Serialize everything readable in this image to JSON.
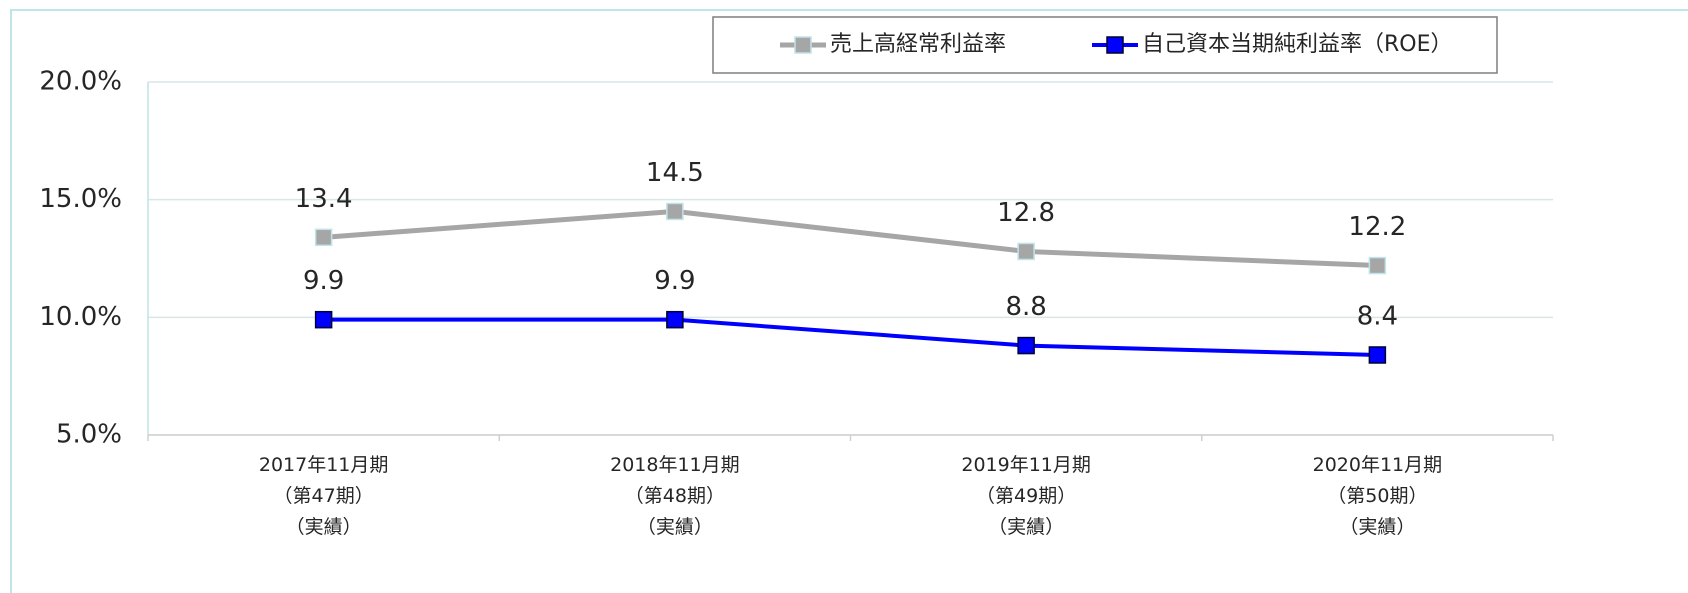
{
  "chart_data": {
    "type": "line",
    "categories": [
      "2017年11月期\n（第47期）\n（実績）",
      "2018年11月期\n（第48期）\n（実績）",
      "2019年11月期\n（第49期）\n（実績）",
      "2020年11月期\n（第50期）\n（実績）"
    ],
    "series": [
      {
        "name": "売上高経常利益率",
        "color": "#a6a6a6",
        "marker_edge": "#bfe4ea",
        "values": [
          13.4,
          14.5,
          12.8,
          12.2
        ]
      },
      {
        "name": "自己資本当期純利益率（ROE）",
        "color": "#0000ff",
        "marker_edge": "#000033",
        "values": [
          9.9,
          9.9,
          8.8,
          8.4
        ]
      }
    ],
    "ylim": [
      5,
      20
    ],
    "yticks": [
      {
        "value": 5,
        "label": "5.0%"
      },
      {
        "value": 10,
        "label": "10.0%"
      },
      {
        "value": 15,
        "label": "15.0%"
      },
      {
        "value": 20,
        "label": "20.0%"
      }
    ],
    "grid": true,
    "legend": "top-right"
  }
}
